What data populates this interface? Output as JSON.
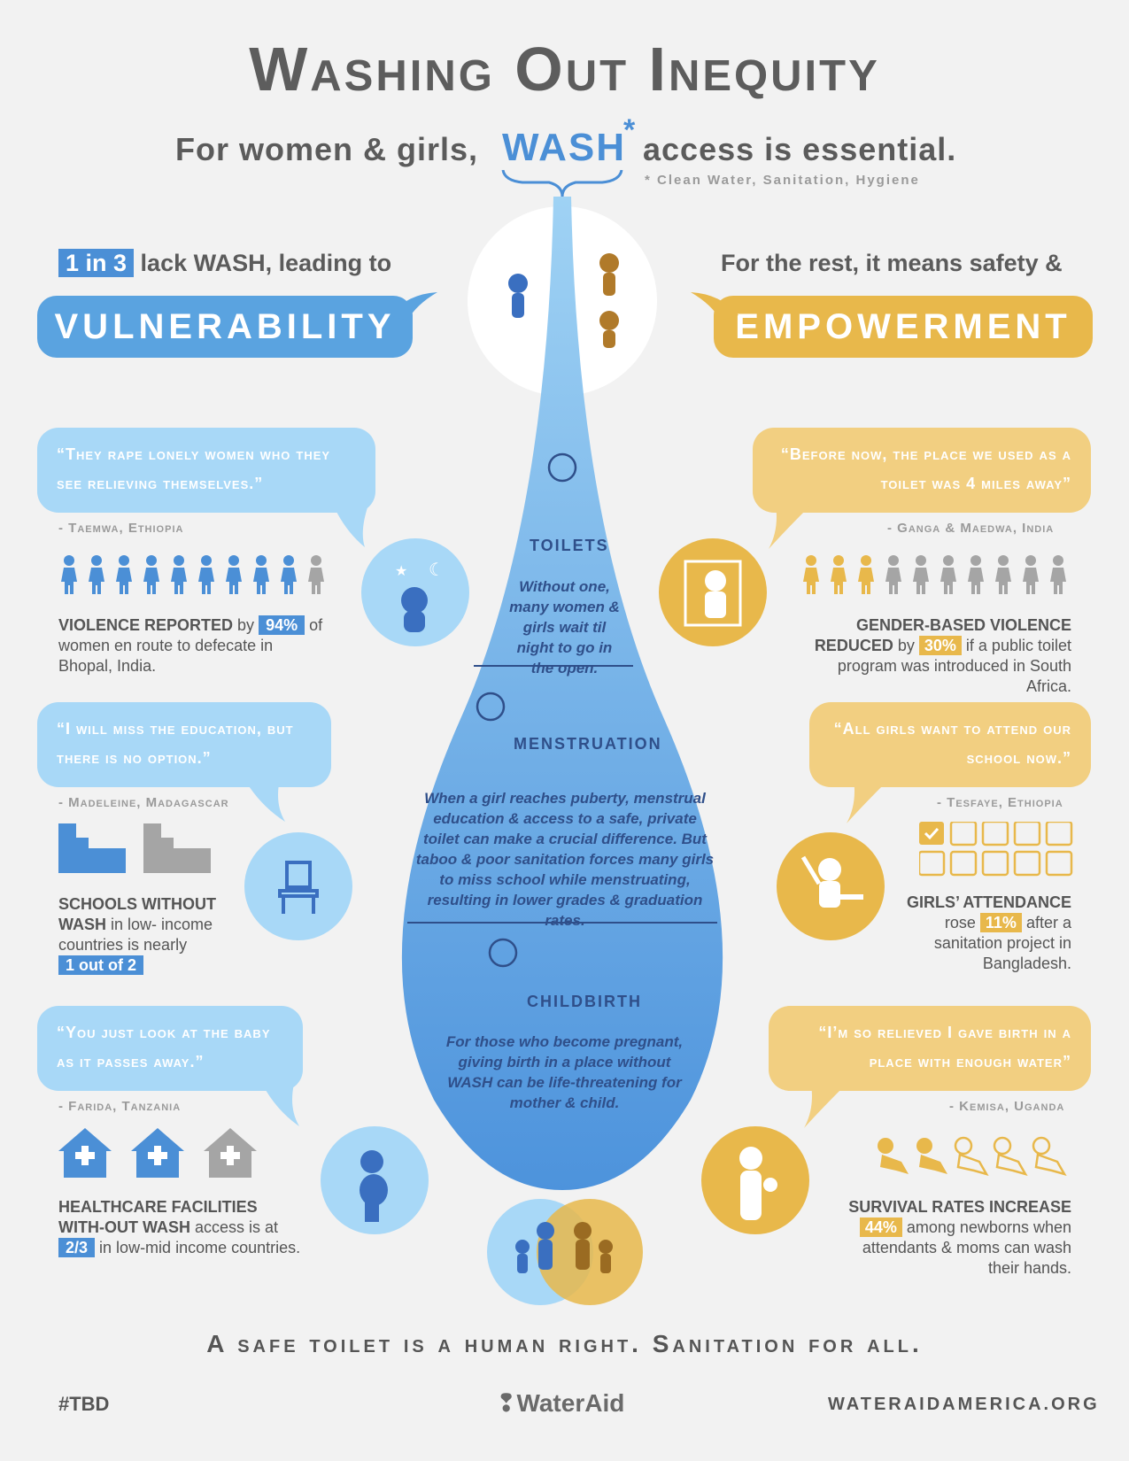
{
  "header": {
    "title": "Washing Out Inequity",
    "subtitle_pre": "For women & girls,",
    "wash": "WASH",
    "star": "*",
    "subtitle_post": "access is essential.",
    "footnote": "* Clean Water, Sanitation, Hygiene"
  },
  "left": {
    "stat_tag": "1 in 3",
    "stat_text": "lack WASH, leading to",
    "banner": "VULNERABILITY",
    "quote1": "“They rape lonely women who they see relieving themselves.”",
    "attr1": "- Taemwa, Ethiopia",
    "fact1_bold": "VIOLENCE REPORTED",
    "fact1_by": "by",
    "fact1_tag": "94%",
    "fact1_rest": "of women en route to defecate in Bhopal, India.",
    "quote2": "“I will miss the education, but there is no option.”",
    "attr2": "- Madeleine, Madagascar",
    "fact2_bold": "SCHOOLS WITHOUT WASH",
    "fact2_rest": "in low- income countries is nearly",
    "fact2_tag": "1 out of 2",
    "quote3": "“You just look at the baby as it passes away.”",
    "attr3": "- Farida, Tanzania",
    "fact3_bold": "HEALTHCARE FACILITIES WITH-OUT WASH",
    "fact3_mid": "access is at",
    "fact3_tag": "2/3",
    "fact3_rest": "in low-mid income countries."
  },
  "right": {
    "stat_text": "For the rest, it means safety &",
    "banner": "EMPOWERMENT",
    "quote1": "“Before now, the place we used as a toilet was 4 miles away”",
    "attr1": "- Ganga & Maedwa, India",
    "fact1_bold": "GENDER-BASED VIOLENCE REDUCED",
    "fact1_by": "by",
    "fact1_tag": "30%",
    "fact1_rest": "if a public toilet program was introduced in South Africa.",
    "quote2": "“All girls want to attend our school now.”",
    "attr2": "- Tesfaye, Ethiopia",
    "fact2_bold": "GIRLS’ ATTENDANCE",
    "fact2_pre": "rose",
    "fact2_tag": "11%",
    "fact2_rest": "after a sanitation project in Bangladesh.",
    "quote3": "“I’m so relieved I gave birth in a place with enough water”",
    "attr3": "- Kemisa, Uganda",
    "fact3_bold": "SURVIVAL RATES INCREASE",
    "fact3_tag": "44%",
    "fact3_rest": "among newborns when attendants & moms can wash their hands."
  },
  "drop": {
    "toilets_head": "TOILETS",
    "toilets_text": "Without one, many women & girls wait til night to go in the open.",
    "menstruation_head": "MENSTRUATION",
    "menstruation_text": "When a girl reaches puberty, menstrual education & access to a safe, private toilet can make a crucial difference. But taboo & poor sanitation forces many girls to miss school while menstruating, resulting in lower grades & graduation rates.",
    "childbirth_head": "CHILDBIRTH",
    "childbirth_text": "For those who become pregnant, giving birth in a place without WASH can be life-threatening for mother & child."
  },
  "footer": {
    "tagline": "A safe toilet is a human right.  Sanitation for all.",
    "hashtag": "#TBD",
    "logo": "WaterAid",
    "url": "WATERAIDAMERICA.ORG"
  },
  "colors": {
    "blue": "#5aa3e0",
    "light_blue": "#a8d8f7",
    "gold": "#e8b84b",
    "light_gold": "#f2cf81"
  },
  "icons": {
    "violence_people_filled": 9,
    "violence_people_total": 10,
    "gbv_people_filled": 3,
    "gbv_people_total": 10,
    "schools_filled": 1,
    "schools_total": 2,
    "checkboxes_filled": 1,
    "checkboxes_total": 10,
    "hospitals_filled": 2,
    "hospitals_total": 3,
    "babies_filled": 2,
    "babies_total": 5
  }
}
